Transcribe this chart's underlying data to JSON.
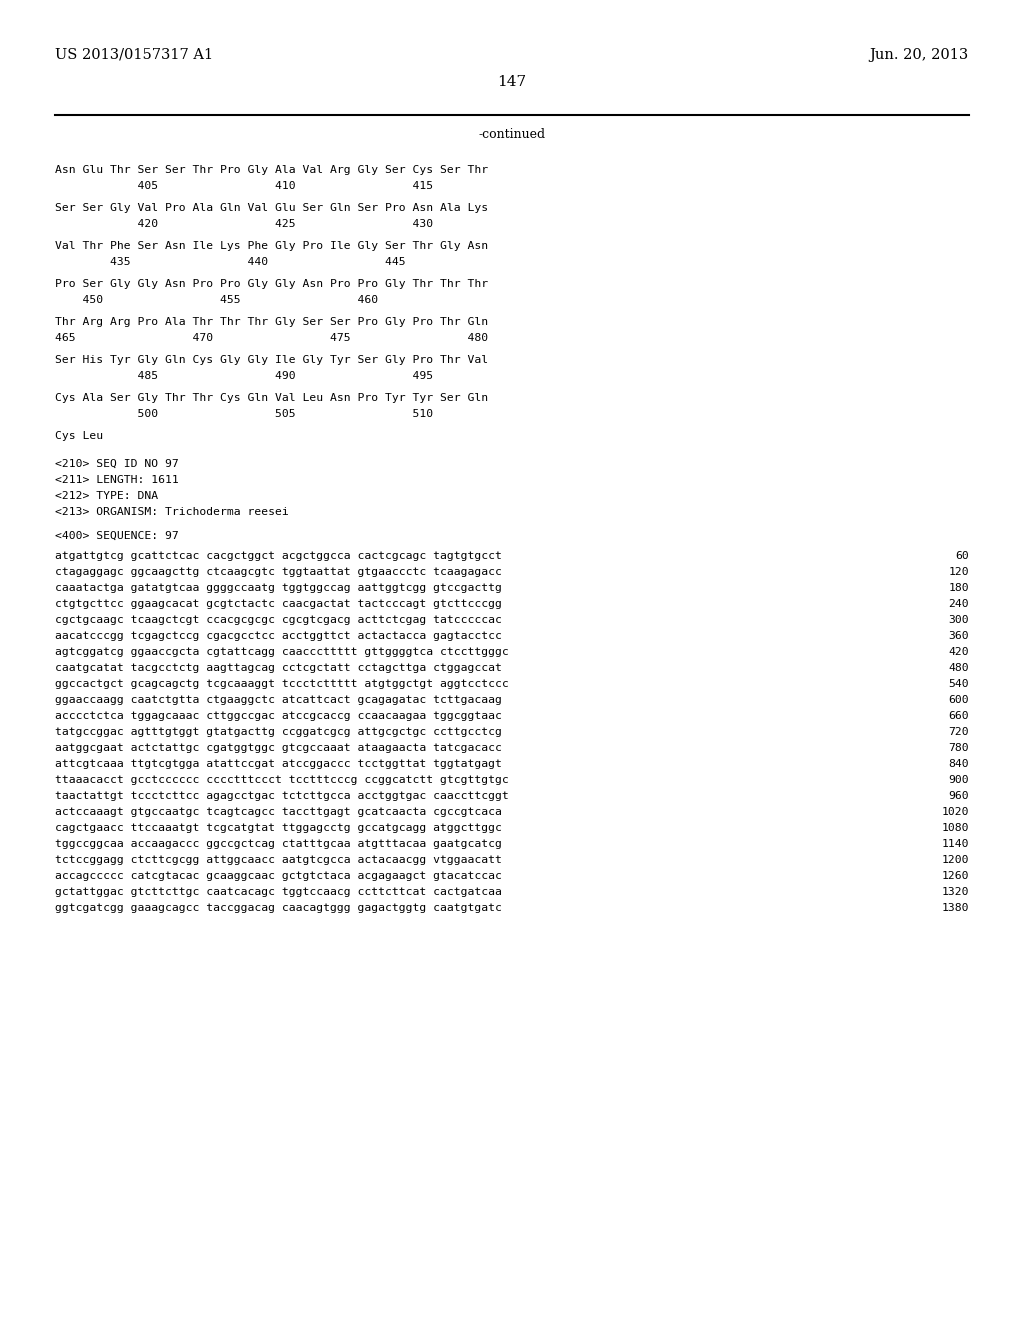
{
  "header_left": "US 2013/0157317 A1",
  "header_right": "Jun. 20, 2013",
  "page_number": "147",
  "continued_label": "-continued",
  "background_color": "#ffffff",
  "text_color": "#000000",
  "font_size_header": 10.5,
  "font_size_page": 11,
  "font_size_continued": 9,
  "amino_acid_lines": [
    "Asn Glu Thr Ser Ser Thr Pro Gly Ala Val Arg Gly Ser Cys Ser Thr",
    "            405                 410                 415",
    "",
    "Ser Ser Gly Val Pro Ala Gln Val Glu Ser Gln Ser Pro Asn Ala Lys",
    "            420                 425                 430",
    "",
    "Val Thr Phe Ser Asn Ile Lys Phe Gly Pro Ile Gly Ser Thr Gly Asn",
    "        435                 440                 445",
    "",
    "Pro Ser Gly Gly Asn Pro Pro Gly Gly Asn Pro Pro Gly Thr Thr Thr",
    "    450                 455                 460",
    "",
    "Thr Arg Arg Pro Ala Thr Thr Thr Gly Ser Ser Pro Gly Pro Thr Gln",
    "465                 470                 475                 480",
    "",
    "Ser His Tyr Gly Gln Cys Gly Gly Ile Gly Tyr Ser Gly Pro Thr Val",
    "            485                 490                 495",
    "",
    "Cys Ala Ser Gly Thr Thr Cys Gln Val Leu Asn Pro Tyr Tyr Ser Gln",
    "            500                 505                 510",
    "",
    "Cys Leu"
  ],
  "seq_info_lines": [
    "<210> SEQ ID NO 97",
    "<211> LENGTH: 1611",
    "<212> TYPE: DNA",
    "<213> ORGANISM: Trichoderma reesei"
  ],
  "seq_label": "<400> SEQUENCE: 97",
  "dna_lines": [
    [
      "atgattgtcg gcattctcac cacgctggct acgctggcca cactcgcagc tagtgtgcct",
      "60"
    ],
    [
      "ctagaggagc ggcaagcttg ctcaagcgtc tggtaattat gtgaaccctc tcaagagacc",
      "120"
    ],
    [
      "caaatactga gatatgtcaa ggggccaatg tggtggccag aattggtcgg gtccgacttg",
      "180"
    ],
    [
      "ctgtgcttcc ggaagcacat gcgtctactc caacgactat tactcccagt gtcttcccgg",
      "240"
    ],
    [
      "cgctgcaagc tcaagctcgt ccacgcgcgc cgcgtcgacg acttctcgag tatcccccac",
      "300"
    ],
    [
      "aacatcccgg tcgagctccg cgacgcctcc acctggttct actactacca gagtacctcc",
      "360"
    ],
    [
      "agtcggatcg ggaaccgcta cgtattcagg caacccttttt gttggggtca ctccttgggc",
      "420"
    ],
    [
      "caatgcatat tacgcctctg aagttagcag cctcgctatt cctagcttga ctggagccat",
      "480"
    ],
    [
      "ggccactgct gcagcagctg tcgcaaaggt tccctcttttt atgtggctgt aggtcctccc",
      "540"
    ],
    [
      "ggaaccaagg caatctgtta ctgaaggctc atcattcact gcagagatac tcttgacaag",
      "600"
    ],
    [
      "acccctctca tggagcaaac cttggccgac atccgcaccg ccaacaagaa tggcggtaac",
      "660"
    ],
    [
      "tatgccggac agtttgtggt gtatgacttg ccggatcgcg attgcgctgc ccttgcctcg",
      "720"
    ],
    [
      "aatggcgaat actctattgc cgatggtggc gtcgccaaat ataagaacta tatcgacacc",
      "780"
    ],
    [
      "attcgtcaaa ttgtcgtgga atattccgat atccggaccc tcctggttat tggtatgagt",
      "840"
    ],
    [
      "ttaaacacct gcctcccccc cccctttccct tcctttcccg ccggcatctt gtcgttgtgc",
      "900"
    ],
    [
      "taactattgt tccctcttcc agagcctgac tctcttgcca acctggtgac caaccttcggt",
      "960"
    ],
    [
      "actccaaagt gtgccaatgc tcagtcagcc taccttgagt gcatcaacta cgccgtcaca",
      "1020"
    ],
    [
      "cagctgaacc ttccaaatgt tcgcatgtat ttggagcctg gccatgcagg atggcttggc",
      "1080"
    ],
    [
      "tggccggcaa accaagaccc ggccgctcag ctatttgcaa atgtttacaa gaatgcatcg",
      "1140"
    ],
    [
      "tctccggagg ctcttcgcgg attggcaacc aatgtcgcca actacaacgg vtggaacatt",
      "1200"
    ],
    [
      "accagccccc catcgtacac gcaaggcaac gctgtctaca acgagaagct gtacatccac",
      "1260"
    ],
    [
      "gctattggac gtcttcttgc caatcacagc tggtccaacg ccttcttcat cactgatcaa",
      "1320"
    ],
    [
      "ggtcgatcgg gaaagcagcc taccggacag caacagtggg gagactggtg caatgtgatc",
      "1380"
    ]
  ]
}
